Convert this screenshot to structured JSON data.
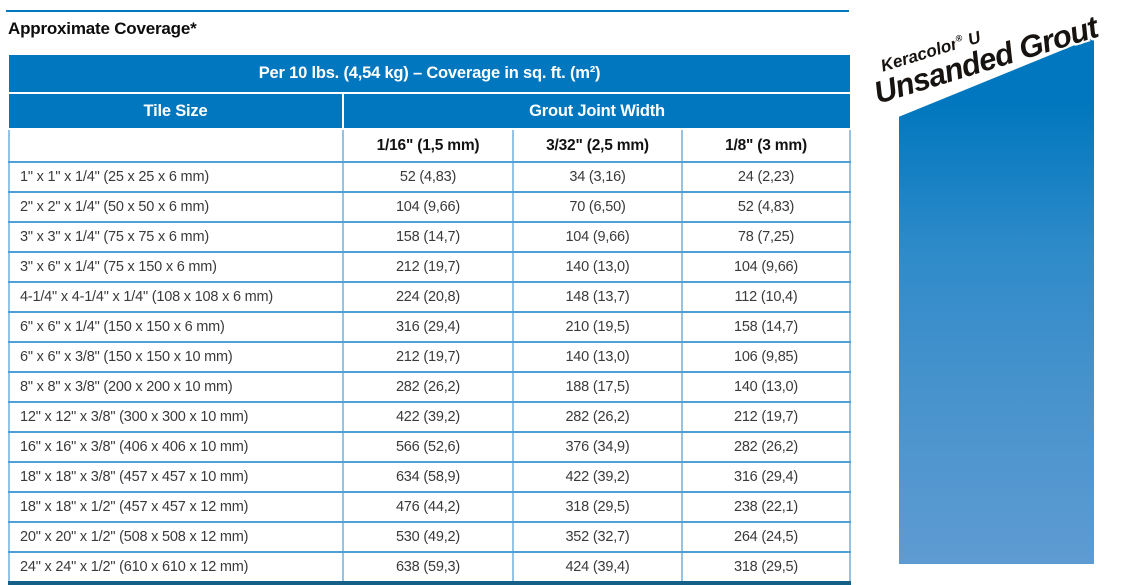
{
  "page": {
    "title": "Approximate Coverage*"
  },
  "banner": {
    "product_name": "Keracolor",
    "registered_mark": "®",
    "product_variant": "U",
    "product_type": "Unsanded Grout"
  },
  "table": {
    "caption": "Per 10 lbs. (4,54 kg) – Coverage in sq. ft. (m²)",
    "col_group_1": "Tile Size",
    "col_group_2": "Grout Joint Width",
    "columns": [
      "1/16\" (1,5 mm)",
      "3/32\" (2,5 mm)",
      "1/8\" (3 mm)"
    ],
    "rows": [
      {
        "tile_size": "1\" x 1\" x 1/4\" (25 x 25 x 6 mm)",
        "values": [
          "52 (4,83)",
          "34 (3,16)",
          "24 (2,23)"
        ]
      },
      {
        "tile_size": "2\" x 2\" x 1/4\" (50 x 50 x 6 mm)",
        "values": [
          "104 (9,66)",
          "70 (6,50)",
          "52 (4,83)"
        ]
      },
      {
        "tile_size": "3\" x 3\" x 1/4\" (75 x 75 x 6 mm)",
        "values": [
          "158 (14,7)",
          "104 (9,66)",
          "78 (7,25)"
        ]
      },
      {
        "tile_size": "3\" x 6\" x 1/4\" (75 x 150 x 6 mm)",
        "values": [
          "212 (19,7)",
          "140 (13,0)",
          "104 (9,66)"
        ]
      },
      {
        "tile_size": "4-1/4\" x 4-1/4\" x 1/4\" (108 x 108 x 6 mm)",
        "values": [
          "224 (20,8)",
          "148 (13,7)",
          "112 (10,4)"
        ]
      },
      {
        "tile_size": "6\" x 6\" x 1/4\" (150 x 150 x 6 mm)",
        "values": [
          "316 (29,4)",
          "210 (19,5)",
          "158 (14,7)"
        ]
      },
      {
        "tile_size": "6\" x 6\" x 3/8\" (150 x 150 x 10 mm)",
        "values": [
          "212 (19,7)",
          "140 (13,0)",
          "106 (9,85)"
        ]
      },
      {
        "tile_size": "8\" x 8\" x 3/8\" (200 x 200 x 10 mm)",
        "values": [
          "282 (26,2)",
          "188 (17,5)",
          "140 (13,0)"
        ]
      },
      {
        "tile_size": "12\" x 12\" x 3/8\" (300 x 300 x 10 mm)",
        "values": [
          "422 (39,2)",
          "282 (26,2)",
          "212 (19,7)"
        ]
      },
      {
        "tile_size": "16\" x 16\" x 3/8\" (406 x 406 x 10 mm)",
        "values": [
          "566 (52,6)",
          "376 (34,9)",
          "282 (26,2)"
        ]
      },
      {
        "tile_size": "18\" x 18\" x 3/8\" (457 x 457 x 10 mm)",
        "values": [
          "634 (58,9)",
          "422 (39,2)",
          "316 (29,4)"
        ]
      },
      {
        "tile_size": "18\" x 18\" x 1/2\" (457 x 457 x 12 mm)",
        "values": [
          "476 (44,2)",
          "318 (29,5)",
          "238 (22,1)"
        ]
      },
      {
        "tile_size": "20\" x 20\" x 1/2\" (508 x 508 x 12 mm)",
        "values": [
          "530 (49,2)",
          "352 (32,7)",
          "264 (24,5)"
        ]
      },
      {
        "tile_size": "24\" x 24\" x 1/2\" (610 x 610 x 12 mm)",
        "values": [
          "638 (59,3)",
          "424 (39,4)",
          "318 (29,5)"
        ]
      }
    ]
  },
  "colors": {
    "header_blue": "#0077BE",
    "row_line_blue": "#4FA0D6",
    "column_line_blue": "#93C4E7",
    "table_bottom_border": "#156088",
    "panel_gradient_top": "#0077BE",
    "panel_gradient_bottom": "#5E9BD2",
    "body_text": "#3A3A3C"
  }
}
